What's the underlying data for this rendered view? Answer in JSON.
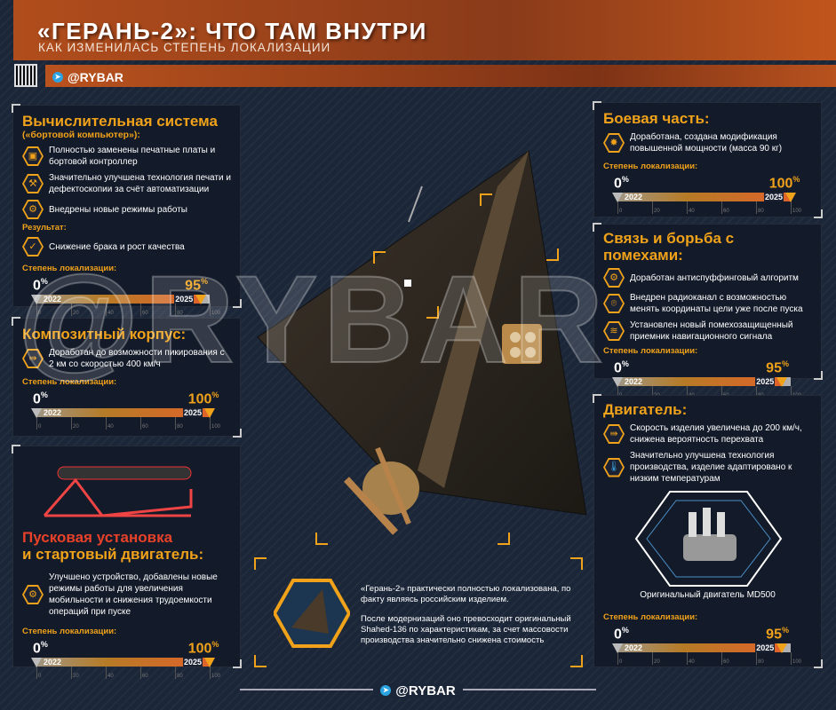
{
  "header": {
    "title": "«ГЕРАНЬ-2»: ЧТО ТАМ ВНУТРИ",
    "subtitle": "КАК ИЗМЕНИЛАСЬ СТЕПЕНЬ ЛОКАЛИЗАЦИИ",
    "handle": "@RYBAR"
  },
  "footer": {
    "handle": "@RYBAR"
  },
  "watermark": "@RYBAR",
  "colors": {
    "accent": "#f0a21a",
    "red": "#e8412a",
    "background": "#1b2638"
  },
  "scale": {
    "start_year": "2022",
    "end_year": "2025",
    "start_value": "0",
    "ticks": [
      "0",
      "20",
      "40",
      "60",
      "80",
      "100"
    ],
    "label": "Степень локализации:"
  },
  "panels": {
    "computer": {
      "title": "Вычислительная система",
      "subtitle": "(«бортовой компьютер»):",
      "items": [
        {
          "icon": "chip-icon",
          "text": "Полностью заменены печатные платы и бортовой контроллер"
        },
        {
          "icon": "robot-arm-icon",
          "text": "Значительно улучшена технология печати и дефектоскопии за счёт автоматизации"
        },
        {
          "icon": "gear-icon",
          "text": "Внедрены новые режимы работы"
        }
      ],
      "result_label": "Результат:",
      "result": {
        "icon": "checkmark-icon",
        "text": "Снижение брака и рост качества"
      },
      "localization": 95
    },
    "body": {
      "title": "Композитный корпус:",
      "items": [
        {
          "icon": "speed-arrow-icon",
          "text": "Доработан до возможности пикирования с 2 км со скоростью 400 км/ч"
        }
      ],
      "localization": 100
    },
    "launcher": {
      "title_line1": "Пусковая установка",
      "title_line2": "и стартовый двигатель:",
      "items": [
        {
          "icon": "gear-wrench-icon",
          "text": "Улучшено устройство, добавлены новые режимы работы для увеличения мобильности и снижения трудоемкости операций при пуске"
        }
      ],
      "localization": 100
    },
    "warhead": {
      "title": "Боевая часть:",
      "items": [
        {
          "icon": "explosion-icon",
          "text": "Доработана, создана модификация повышенной мощности (масса 90 кг)"
        }
      ],
      "localization": 100
    },
    "comms": {
      "title": "Связь и борьба с помехами:",
      "items": [
        {
          "icon": "gear-search-icon",
          "text": "Доработан антиспуффинговый алгоритм"
        },
        {
          "icon": "location-icon",
          "text": "Внедрен радиоканал с возможностью менять координаты цели уже после пуска"
        },
        {
          "icon": "wifi-icon",
          "text": "Установлен новый помехозащищенный приемник навигационного сигнала"
        }
      ],
      "localization": 95
    },
    "engine": {
      "title": "Двигатель:",
      "items": [
        {
          "icon": "speed-arrow-icon",
          "text": "Скорость изделия увеличена до 200 км/ч, снижена вероятность перехвата"
        },
        {
          "icon": "thermometer-icon",
          "text": "Значительно улучшена технология производства, изделие адаптировано к низким температурам"
        }
      ],
      "caption": "Оригинальный двигатель MD500",
      "localization": 95
    }
  },
  "summary": {
    "p1": "«Герань-2» практически полностью локализована, по факту являясь российским изделием.",
    "p2": "После модернизаций оно превосходит оригинальный Shahed-136 по характеристикам, за счет массовости производства значительно снижена стоимость"
  }
}
